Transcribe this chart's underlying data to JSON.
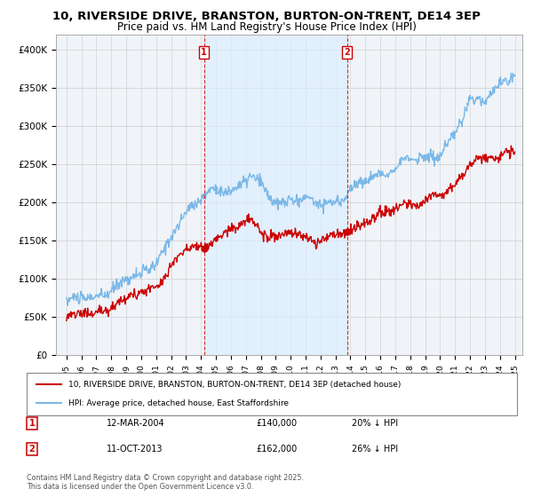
{
  "title": "10, RIVERSIDE DRIVE, BRANSTON, BURTON-ON-TRENT, DE14 3EP",
  "subtitle": "Price paid vs. HM Land Registry's House Price Index (HPI)",
  "title_fontsize": 9.5,
  "subtitle_fontsize": 8.5,
  "ylim": [
    0,
    420000
  ],
  "yticks": [
    0,
    50000,
    100000,
    150000,
    200000,
    250000,
    300000,
    350000,
    400000
  ],
  "ytick_labels": [
    "£0",
    "£50K",
    "£100K",
    "£150K",
    "£200K",
    "£250K",
    "£300K",
    "£350K",
    "£400K"
  ],
  "hpi_color": "#7ab8e8",
  "price_color": "#cc0000",
  "transaction1_date": "12-MAR-2004",
  "transaction1_price": 140000,
  "transaction1_hpi_pct": "20% ↓ HPI",
  "transaction1_year": 2004.2,
  "transaction2_date": "11-OCT-2013",
  "transaction2_price": 162000,
  "transaction2_hpi_pct": "26% ↓ HPI",
  "transaction2_year": 2013.78,
  "legend_label1": "10, RIVERSIDE DRIVE, BRANSTON, BURTON-ON-TRENT, DE14 3EP (detached house)",
  "legend_label2": "HPI: Average price, detached house, East Staffordshire",
  "footer": "Contains HM Land Registry data © Crown copyright and database right 2025.\nThis data is licensed under the Open Government Licence v3.0.",
  "background_color": "#f0f4f8",
  "shaded_region_color": "#ddeeff",
  "grid_color": "#cccccc"
}
